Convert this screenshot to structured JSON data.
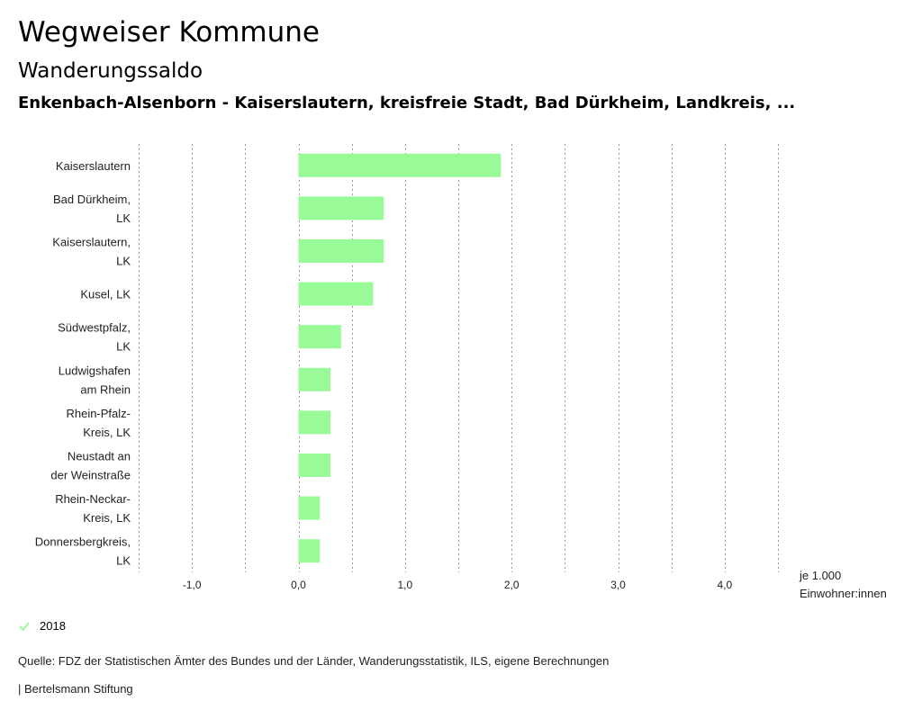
{
  "header": {
    "title": "Wegweiser Kommune",
    "subtitle": "Wanderungssaldo",
    "regions": "Enkenbach-Alsenborn - Kaiserslautern, kreisfreie Stadt, Bad Dürkheim, Landkreis, ..."
  },
  "colors": {
    "bar": "#98fb98",
    "grid": "#999999"
  },
  "chart_data": {
    "type": "bar",
    "orientation": "horizontal",
    "categories": [
      [
        "Kaiserslautern"
      ],
      [
        "Bad Dürkheim,",
        "LK"
      ],
      [
        "Kaiserslautern,",
        "LK"
      ],
      [
        "Kusel, LK"
      ],
      [
        "Südwestpfalz,",
        "LK"
      ],
      [
        "Ludwigshafen",
        "am Rhein"
      ],
      [
        "Rhein-Pfalz-",
        "Kreis, LK"
      ],
      [
        "Neustadt an",
        "der Weinstraße"
      ],
      [
        "Rhein-Neckar-",
        "Kreis, LK"
      ],
      [
        "Donnersbergkreis,",
        "LK"
      ]
    ],
    "series": [
      {
        "name": "2018",
        "values": [
          1.9,
          0.8,
          0.8,
          0.7,
          0.4,
          0.3,
          0.3,
          0.3,
          0.2,
          0.2
        ]
      }
    ],
    "xlim": [
      -1.5,
      4.5
    ],
    "xticks": [
      -1.0,
      0.0,
      1.0,
      2.0,
      3.0,
      4.0
    ],
    "xtick_labels": [
      "-1,0",
      "0,0",
      "1,0",
      "2,0",
      "3,0",
      "4,0"
    ],
    "gridlines": [
      -1.5,
      -1.0,
      -0.5,
      0.0,
      0.5,
      1.0,
      1.5,
      2.0,
      2.5,
      3.0,
      3.5,
      4.0,
      4.5
    ],
    "unit_label": [
      "je 1.000",
      "Einwohner:innen"
    ]
  },
  "legend": {
    "label": "2018"
  },
  "footer": {
    "source": "Quelle: FDZ der Statistischen Ämter des Bundes und der Länder, Wanderungsstatistik, ILS, eigene Berechnungen",
    "publisher": "| Bertelsmann Stiftung"
  }
}
